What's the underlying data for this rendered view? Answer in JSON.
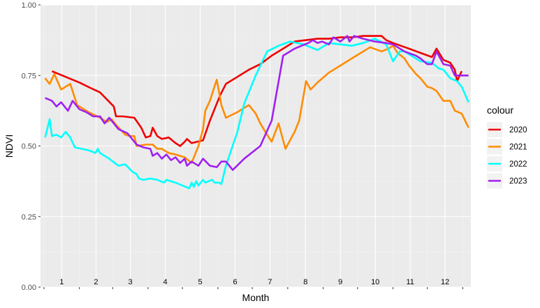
{
  "chart_data": {
    "type": "line",
    "xlabel": "Month",
    "ylabel": "NDVI",
    "ylim": [
      0,
      1
    ],
    "y_ticks": [
      "0.00",
      "0.25",
      "0.50",
      "0.75",
      "1.00"
    ],
    "x_tick_labels": [
      "1",
      "2",
      "3",
      "4",
      "5",
      "6",
      "7",
      "8",
      "9",
      "10",
      "11",
      "12"
    ],
    "x_range_days": [
      1,
      366
    ],
    "grid": true,
    "legend_title": "colour",
    "legend_position": "right",
    "series": [
      {
        "name": "2020",
        "color": "#ee0000",
        "points": [
          [
            8,
            0.765
          ],
          [
            20,
            0.745
          ],
          [
            32,
            0.725
          ],
          [
            42,
            0.705
          ],
          [
            50,
            0.69
          ],
          [
            56,
            0.665
          ],
          [
            62,
            0.64
          ],
          [
            64,
            0.605
          ],
          [
            70,
            0.605
          ],
          [
            80,
            0.6
          ],
          [
            86,
            0.565
          ],
          [
            90,
            0.53
          ],
          [
            94,
            0.535
          ],
          [
            96,
            0.565
          ],
          [
            100,
            0.535
          ],
          [
            104,
            0.525
          ],
          [
            110,
            0.53
          ],
          [
            116,
            0.51
          ],
          [
            120,
            0.5
          ],
          [
            124,
            0.515
          ],
          [
            126,
            0.525
          ],
          [
            130,
            0.51
          ],
          [
            140,
            0.52
          ],
          [
            146,
            0.59
          ],
          [
            150,
            0.63
          ],
          [
            155,
            0.68
          ],
          [
            160,
            0.72
          ],
          [
            170,
            0.745
          ],
          [
            180,
            0.77
          ],
          [
            190,
            0.79
          ],
          [
            200,
            0.82
          ],
          [
            210,
            0.845
          ],
          [
            220,
            0.87
          ],
          [
            230,
            0.875
          ],
          [
            240,
            0.88
          ],
          [
            250,
            0.88
          ],
          [
            260,
            0.885
          ],
          [
            270,
            0.885
          ],
          [
            280,
            0.89
          ],
          [
            290,
            0.89
          ],
          [
            296,
            0.89
          ],
          [
            300,
            0.875
          ],
          [
            306,
            0.865
          ],
          [
            320,
            0.845
          ],
          [
            330,
            0.83
          ],
          [
            340,
            0.815
          ],
          [
            344,
            0.845
          ],
          [
            350,
            0.805
          ],
          [
            356,
            0.795
          ],
          [
            360,
            0.77
          ],
          [
            362,
            0.73
          ],
          [
            366,
            0.765
          ]
        ]
      },
      {
        "name": "2021",
        "color": "#ff8c00",
        "points": [
          [
            2,
            0.74
          ],
          [
            6,
            0.72
          ],
          [
            10,
            0.755
          ],
          [
            16,
            0.7
          ],
          [
            24,
            0.72
          ],
          [
            30,
            0.645
          ],
          [
            40,
            0.62
          ],
          [
            50,
            0.6
          ],
          [
            56,
            0.585
          ],
          [
            60,
            0.595
          ],
          [
            64,
            0.575
          ],
          [
            72,
            0.54
          ],
          [
            76,
            0.535
          ],
          [
            80,
            0.535
          ],
          [
            82,
            0.5
          ],
          [
            90,
            0.505
          ],
          [
            96,
            0.505
          ],
          [
            100,
            0.49
          ],
          [
            104,
            0.49
          ],
          [
            110,
            0.475
          ],
          [
            116,
            0.47
          ],
          [
            124,
            0.46
          ],
          [
            130,
            0.44
          ],
          [
            136,
            0.5
          ],
          [
            140,
            0.56
          ],
          [
            142,
            0.625
          ],
          [
            146,
            0.66
          ],
          [
            150,
            0.71
          ],
          [
            152,
            0.735
          ],
          [
            156,
            0.645
          ],
          [
            160,
            0.6
          ],
          [
            170,
            0.62
          ],
          [
            180,
            0.645
          ],
          [
            186,
            0.615
          ],
          [
            190,
            0.58
          ],
          [
            196,
            0.54
          ],
          [
            200,
            0.515
          ],
          [
            206,
            0.58
          ],
          [
            212,
            0.49
          ],
          [
            220,
            0.55
          ],
          [
            224,
            0.59
          ],
          [
            230,
            0.73
          ],
          [
            234,
            0.7
          ],
          [
            240,
            0.725
          ],
          [
            250,
            0.76
          ],
          [
            260,
            0.785
          ],
          [
            270,
            0.81
          ],
          [
            280,
            0.835
          ],
          [
            286,
            0.85
          ],
          [
            296,
            0.835
          ],
          [
            302,
            0.845
          ],
          [
            306,
            0.855
          ],
          [
            310,
            0.83
          ],
          [
            316,
            0.81
          ],
          [
            320,
            0.785
          ],
          [
            326,
            0.755
          ],
          [
            330,
            0.74
          ],
          [
            336,
            0.71
          ],
          [
            340,
            0.705
          ],
          [
            344,
            0.695
          ],
          [
            350,
            0.66
          ],
          [
            356,
            0.66
          ],
          [
            360,
            0.625
          ],
          [
            366,
            0.615
          ],
          [
            372,
            0.565
          ]
        ]
      },
      {
        "name": "2022",
        "color": "#00ffff",
        "points": [
          [
            2,
            0.53
          ],
          [
            6,
            0.595
          ],
          [
            8,
            0.535
          ],
          [
            12,
            0.54
          ],
          [
            16,
            0.53
          ],
          [
            20,
            0.55
          ],
          [
            24,
            0.53
          ],
          [
            28,
            0.495
          ],
          [
            40,
            0.485
          ],
          [
            46,
            0.475
          ],
          [
            48,
            0.49
          ],
          [
            50,
            0.475
          ],
          [
            58,
            0.455
          ],
          [
            66,
            0.43
          ],
          [
            72,
            0.435
          ],
          [
            78,
            0.41
          ],
          [
            82,
            0.4
          ],
          [
            84,
            0.385
          ],
          [
            88,
            0.38
          ],
          [
            94,
            0.385
          ],
          [
            100,
            0.38
          ],
          [
            106,
            0.37
          ],
          [
            108,
            0.38
          ],
          [
            116,
            0.37
          ],
          [
            122,
            0.36
          ],
          [
            128,
            0.35
          ],
          [
            130,
            0.37
          ],
          [
            132,
            0.355
          ],
          [
            134,
            0.375
          ],
          [
            136,
            0.36
          ],
          [
            140,
            0.38
          ],
          [
            142,
            0.37
          ],
          [
            148,
            0.38
          ],
          [
            150,
            0.37
          ],
          [
            154,
            0.37
          ],
          [
            156,
            0.365
          ],
          [
            160,
            0.43
          ],
          [
            170,
            0.55
          ],
          [
            176,
            0.65
          ],
          [
            186,
            0.75
          ],
          [
            196,
            0.835
          ],
          [
            206,
            0.855
          ],
          [
            216,
            0.87
          ],
          [
            228,
            0.86
          ],
          [
            240,
            0.84
          ],
          [
            250,
            0.865
          ],
          [
            260,
            0.86
          ],
          [
            270,
            0.855
          ],
          [
            280,
            0.865
          ],
          [
            290,
            0.88
          ],
          [
            300,
            0.86
          ],
          [
            306,
            0.8
          ],
          [
            312,
            0.835
          ],
          [
            316,
            0.835
          ],
          [
            320,
            0.825
          ],
          [
            330,
            0.8
          ],
          [
            340,
            0.795
          ],
          [
            346,
            0.775
          ],
          [
            350,
            0.77
          ],
          [
            356,
            0.74
          ],
          [
            362,
            0.73
          ],
          [
            366,
            0.71
          ],
          [
            372,
            0.655
          ]
        ]
      },
      {
        "name": "2023",
        "color": "#a020f0",
        "points": [
          [
            2,
            0.67
          ],
          [
            8,
            0.66
          ],
          [
            12,
            0.64
          ],
          [
            16,
            0.655
          ],
          [
            22,
            0.625
          ],
          [
            26,
            0.66
          ],
          [
            32,
            0.63
          ],
          [
            38,
            0.62
          ],
          [
            44,
            0.605
          ],
          [
            50,
            0.605
          ],
          [
            54,
            0.58
          ],
          [
            58,
            0.6
          ],
          [
            62,
            0.58
          ],
          [
            66,
            0.56
          ],
          [
            74,
            0.545
          ],
          [
            82,
            0.505
          ],
          [
            88,
            0.495
          ],
          [
            94,
            0.49
          ],
          [
            96,
            0.465
          ],
          [
            100,
            0.475
          ],
          [
            104,
            0.455
          ],
          [
            108,
            0.47
          ],
          [
            112,
            0.45
          ],
          [
            116,
            0.46
          ],
          [
            120,
            0.44
          ],
          [
            124,
            0.455
          ],
          [
            126,
            0.43
          ],
          [
            130,
            0.445
          ],
          [
            136,
            0.43
          ],
          [
            140,
            0.455
          ],
          [
            146,
            0.43
          ],
          [
            152,
            0.425
          ],
          [
            156,
            0.445
          ],
          [
            160,
            0.445
          ],
          [
            166,
            0.415
          ],
          [
            176,
            0.455
          ],
          [
            190,
            0.5
          ],
          [
            200,
            0.59
          ],
          [
            210,
            0.82
          ],
          [
            220,
            0.845
          ],
          [
            226,
            0.855
          ],
          [
            232,
            0.865
          ],
          [
            236,
            0.875
          ],
          [
            240,
            0.865
          ],
          [
            244,
            0.87
          ],
          [
            250,
            0.86
          ],
          [
            254,
            0.885
          ],
          [
            260,
            0.87
          ],
          [
            266,
            0.89
          ],
          [
            268,
            0.87
          ],
          [
            272,
            0.89
          ],
          [
            280,
            0.88
          ],
          [
            290,
            0.87
          ],
          [
            300,
            0.865
          ],
          [
            306,
            0.86
          ],
          [
            316,
            0.835
          ],
          [
            326,
            0.82
          ],
          [
            330,
            0.81
          ],
          [
            336,
            0.79
          ],
          [
            340,
            0.79
          ],
          [
            344,
            0.835
          ],
          [
            350,
            0.79
          ],
          [
            356,
            0.785
          ],
          [
            360,
            0.75
          ],
          [
            366,
            0.75
          ],
          [
            372,
            0.75
          ]
        ]
      }
    ]
  }
}
